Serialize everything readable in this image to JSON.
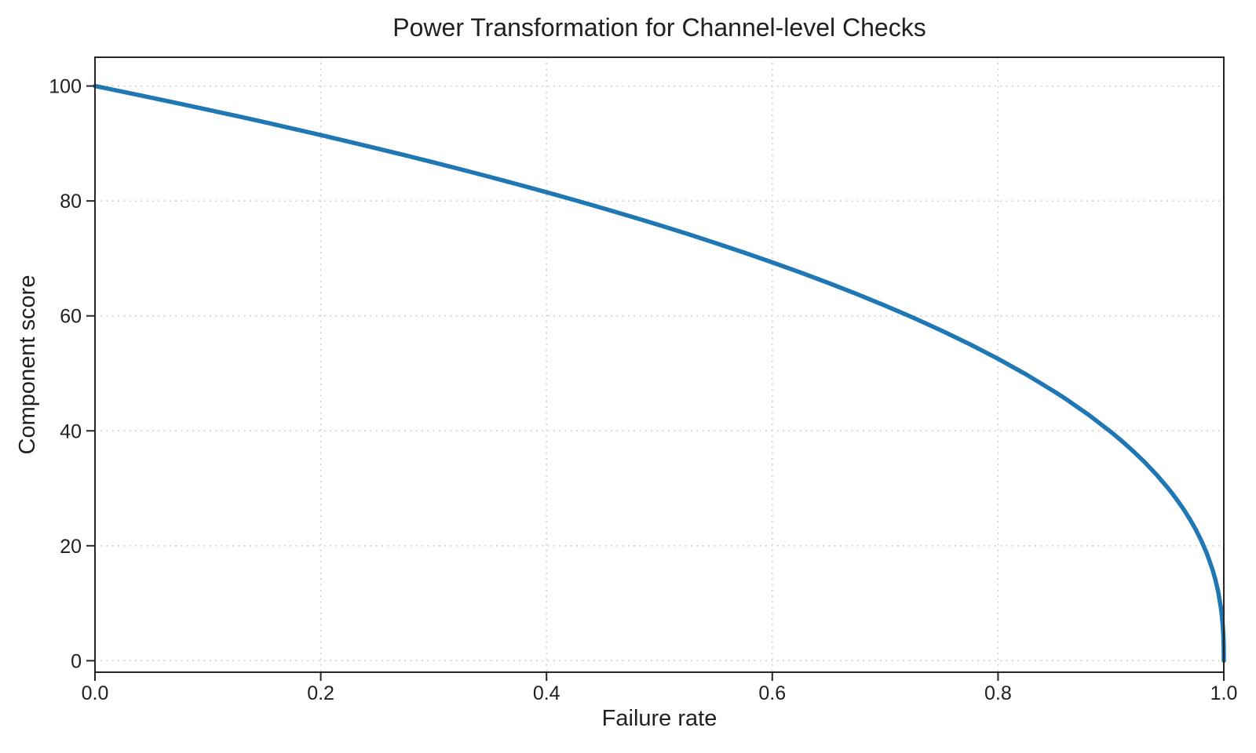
{
  "chart_data": {
    "type": "line",
    "title": "Power Transformation for Channel-level Checks",
    "xlabel": "Failure rate",
    "ylabel": "Component score",
    "xlim": [
      0.0,
      1.0
    ],
    "ylim": [
      -2,
      105
    ],
    "xticks": [
      0.0,
      0.2,
      0.4,
      0.6,
      0.8,
      1.0
    ],
    "xtick_labels": [
      "0.0",
      "0.2",
      "0.4",
      "0.6",
      "0.8",
      "1.0"
    ],
    "yticks": [
      0,
      20,
      40,
      60,
      80,
      100
    ],
    "ytick_labels": [
      "0",
      "20",
      "40",
      "60",
      "80",
      "100"
    ],
    "grid": "dotted, both axes",
    "legend": "none",
    "colors": {
      "line": "#1f77b4",
      "grid": "#c9c9c9",
      "spine": "#262626",
      "text": "#212121"
    },
    "series": [
      {
        "name": "component score curve",
        "formula_estimate": "y = 100 * (1 - x)^0.4",
        "points": [
          [
            0.0,
            100.0
          ],
          [
            0.025,
            98.99
          ],
          [
            0.05,
            97.97
          ],
          [
            0.075,
            96.93
          ],
          [
            0.1,
            95.87
          ],
          [
            0.125,
            94.8
          ],
          [
            0.15,
            93.71
          ],
          [
            0.175,
            92.59
          ],
          [
            0.2,
            91.46
          ],
          [
            0.225,
            90.31
          ],
          [
            0.25,
            89.13
          ],
          [
            0.275,
            87.93
          ],
          [
            0.3,
            86.7
          ],
          [
            0.325,
            85.45
          ],
          [
            0.35,
            84.17
          ],
          [
            0.375,
            82.86
          ],
          [
            0.4,
            81.52
          ],
          [
            0.425,
            80.14
          ],
          [
            0.45,
            78.73
          ],
          [
            0.475,
            77.28
          ],
          [
            0.5,
            75.79
          ],
          [
            0.525,
            74.25
          ],
          [
            0.55,
            72.66
          ],
          [
            0.575,
            71.02
          ],
          [
            0.6,
            69.31
          ],
          [
            0.625,
            67.55
          ],
          [
            0.65,
            65.71
          ],
          [
            0.675,
            63.79
          ],
          [
            0.7,
            61.78
          ],
          [
            0.725,
            59.67
          ],
          [
            0.75,
            57.43
          ],
          [
            0.775,
            55.07
          ],
          [
            0.8,
            52.53
          ],
          [
            0.825,
            49.8
          ],
          [
            0.85,
            46.82
          ],
          [
            0.86,
            45.55
          ],
          [
            0.88,
            42.82
          ],
          [
            0.9,
            39.81
          ],
          [
            0.91,
            38.17
          ],
          [
            0.92,
            36.41
          ],
          [
            0.93,
            34.52
          ],
          [
            0.94,
            32.45
          ],
          [
            0.95,
            30.17
          ],
          [
            0.955,
            28.93
          ],
          [
            0.96,
            27.59
          ],
          [
            0.965,
            26.16
          ],
          [
            0.97,
            24.6
          ],
          [
            0.975,
            22.87
          ],
          [
            0.98,
            20.91
          ],
          [
            0.985,
            18.64
          ],
          [
            0.99,
            15.85
          ],
          [
            0.9925,
            14.13
          ],
          [
            0.995,
            12.01
          ],
          [
            0.9975,
            9.11
          ],
          [
            0.998,
            8.33
          ],
          [
            0.999,
            6.31
          ],
          [
            0.9995,
            4.78
          ],
          [
            0.9997,
            3.9
          ],
          [
            0.9999,
            2.51
          ],
          [
            0.99995,
            1.91
          ],
          [
            1.0,
            0.0
          ]
        ]
      }
    ]
  }
}
